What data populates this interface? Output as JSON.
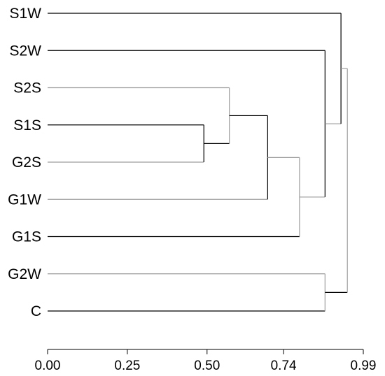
{
  "chart_data": {
    "type": "dendrogram",
    "orientation": "horizontal",
    "title": "",
    "xlabel": "",
    "ylabel": "",
    "xlim": [
      0.0,
      0.99
    ],
    "x_ticks": [
      "0.00",
      "0.25",
      "0.50",
      "0.74",
      "0.99"
    ],
    "x_tick_values": [
      0.0,
      0.25,
      0.5,
      0.74,
      0.99
    ],
    "leaves": [
      "S1W",
      "S2W",
      "S2S",
      "S1S",
      "G2S",
      "G1W",
      "G1S",
      "G2W",
      "C"
    ],
    "merges": [
      {
        "id": "m1",
        "left": "S1S",
        "right": "G2S",
        "height": 0.49
      },
      {
        "id": "m2",
        "left": "S2S",
        "right": "m1",
        "height": 0.57
      },
      {
        "id": "m3",
        "left": "m2",
        "right": "G1W",
        "height": 0.69
      },
      {
        "id": "m4",
        "left": "m3",
        "right": "G1S",
        "height": 0.79
      },
      {
        "id": "m5",
        "left": "S2W",
        "right": "m4",
        "height": 0.87
      },
      {
        "id": "m6",
        "left": "G2W",
        "right": "C",
        "height": 0.87
      },
      {
        "id": "m7",
        "left": "S1W",
        "right": "m5",
        "height": 0.92
      },
      {
        "id": "m8",
        "left": "m7",
        "right": "m6",
        "height": 0.94
      }
    ],
    "line_colors": [
      "#000000",
      "#9e9e9e"
    ]
  }
}
